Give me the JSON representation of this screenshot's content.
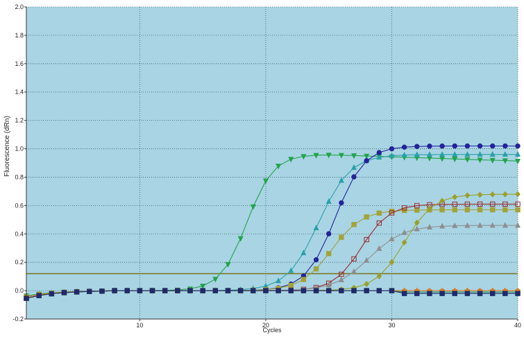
{
  "chart_data": {
    "type": "line",
    "title": "",
    "xlabel": "Cycles",
    "ylabel": "Fluorescence (dRn)",
    "xlim": [
      1,
      40
    ],
    "ylim": [
      -0.2,
      2.0
    ],
    "x_ticks": [
      10,
      20,
      30,
      40
    ],
    "x_tick_labels": [
      "10",
      "20",
      "30",
      "40"
    ],
    "y_ticks": [
      -0.2,
      0.0,
      0.2,
      0.4,
      0.6,
      0.8,
      1.0,
      1.2,
      1.4,
      1.6,
      1.8,
      2.0
    ],
    "y_tick_labels": [
      "-0.2",
      "0.0",
      "0.2",
      "0.4",
      "0.6",
      "0.8",
      "1.0",
      "1.2",
      "1.4",
      "1.6",
      "1.8",
      "2.0"
    ],
    "grid": true,
    "legend": "none",
    "background": "#a8d4e4",
    "threshold": {
      "value": 0.12,
      "color": "#7a7a2a"
    },
    "series": [
      {
        "color": "#22a34a",
        "marker": "triangle-down",
        "filled": true,
        "base": 0.0,
        "plateau": 0.96,
        "ct": 18.5,
        "slope": 1.05,
        "decline": 0.003
      },
      {
        "color": "#2aa0a8",
        "marker": "triangle-up",
        "filled": true,
        "base": 0.0,
        "plateau": 0.96,
        "ct": 24.2,
        "slope": 1.25,
        "decline": 0.0
      },
      {
        "color": "#23239a",
        "marker": "circle",
        "filled": true,
        "base": 0.0,
        "plateau": 1.02,
        "ct": 25.5,
        "slope": 1.15,
        "decline": 0.0
      },
      {
        "color": "#a3a33a",
        "marker": "square",
        "filled": true,
        "base": 0.0,
        "plateau": 0.57,
        "ct": 25.2,
        "slope": 1.2,
        "decline": 0.0
      },
      {
        "color": "#9a2a2a",
        "marker": "square",
        "filled": false,
        "base": 0.0,
        "plateau": 0.61,
        "ct": 27.6,
        "slope": 1.1,
        "decline": 0.0
      },
      {
        "color": "#8e8e8e",
        "marker": "triangle-up",
        "filled": true,
        "base": 0.0,
        "plateau": 0.46,
        "ct": 28.2,
        "slope": 1.35,
        "decline": 0.0
      },
      {
        "color": "#9aa02a",
        "marker": "diamond",
        "filled": true,
        "base": 0.0,
        "plateau": 0.68,
        "ct": 31.0,
        "slope": 1.15,
        "decline": 0.0
      },
      {
        "color": "#1a8a4a",
        "marker": "square",
        "filled": true,
        "base": 0.0,
        "plateau": 0.0,
        "ct": 50,
        "slope": 1.0,
        "decline": 0.0,
        "flat_end": -0.01
      },
      {
        "color": "#e87a22",
        "marker": "diamond",
        "filled": true,
        "base": 0.0,
        "plateau": 0.0,
        "ct": 50,
        "slope": 1.0,
        "decline": 0.0,
        "flat_end": 0.0
      },
      {
        "color": "#1f2a6a",
        "marker": "square",
        "filled": true,
        "base": 0.0,
        "plateau": 0.0,
        "ct": 50,
        "slope": 1.0,
        "decline": 0.0,
        "flat_end": -0.02
      }
    ]
  }
}
